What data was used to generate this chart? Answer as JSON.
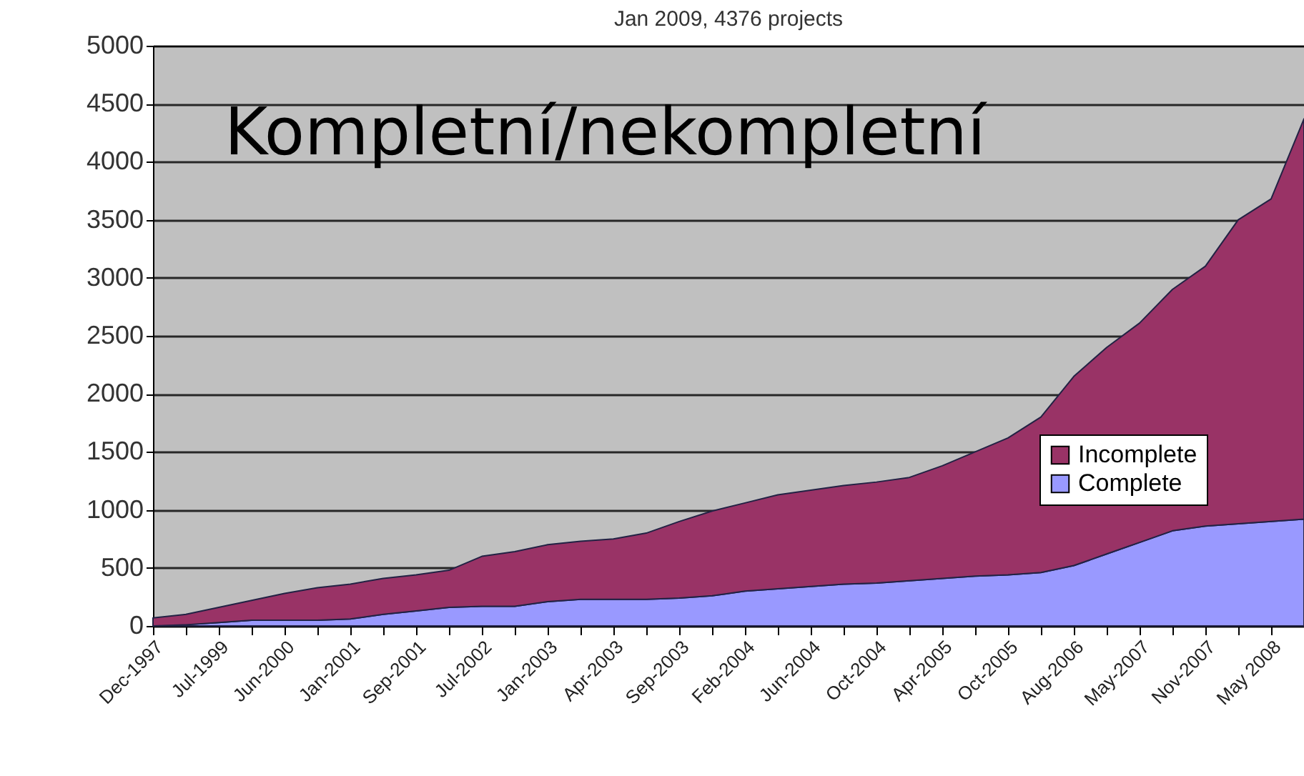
{
  "chart_data": {
    "type": "area",
    "title": "Jan 2009, 4376 projects",
    "stacked": true,
    "categories": [
      "Dec-1997",
      null,
      "Jul-1999",
      null,
      "Jun-2000",
      null,
      "Jan-2001",
      null,
      "Sep-2001",
      null,
      "Jul-2002",
      null,
      "Jan-2003",
      null,
      "Apr-2003",
      null,
      "Sep-2003",
      null,
      "Feb-2004",
      null,
      "Jun-2004",
      null,
      "Oct-2004",
      null,
      "Apr-2005",
      null,
      "Oct-2005",
      null,
      "Aug-2006",
      null,
      "May-2007",
      null,
      "Nov-2007",
      null,
      "May 2008",
      null
    ],
    "series": [
      {
        "name": "Complete",
        "color": "#9999ff",
        "values": [
          0,
          10,
          30,
          50,
          50,
          50,
          60,
          100,
          130,
          160,
          170,
          170,
          210,
          230,
          230,
          230,
          240,
          260,
          300,
          320,
          340,
          360,
          370,
          390,
          410,
          430,
          440,
          460,
          520,
          620,
          720,
          820,
          860,
          880,
          900,
          920
        ]
      },
      {
        "name": "Incomplete",
        "color": "#993366",
        "values": [
          70,
          90,
          130,
          170,
          230,
          280,
          300,
          310,
          310,
          320,
          430,
          470,
          490,
          500,
          520,
          570,
          660,
          730,
          760,
          810,
          830,
          850,
          870,
          890,
          970,
          1070,
          1180,
          1340,
          1630,
          1780,
          1890,
          2080,
          2240,
          2620,
          2780,
          3450
        ]
      }
    ],
    "ylim": [
      0,
      5000
    ],
    "yticks": [
      0,
      500,
      1000,
      1500,
      2000,
      2500,
      3000,
      3500,
      4000,
      4500,
      5000
    ],
    "grid": "y",
    "legend": "right",
    "annotations": [
      "Kompletní/nekompletní"
    ]
  }
}
